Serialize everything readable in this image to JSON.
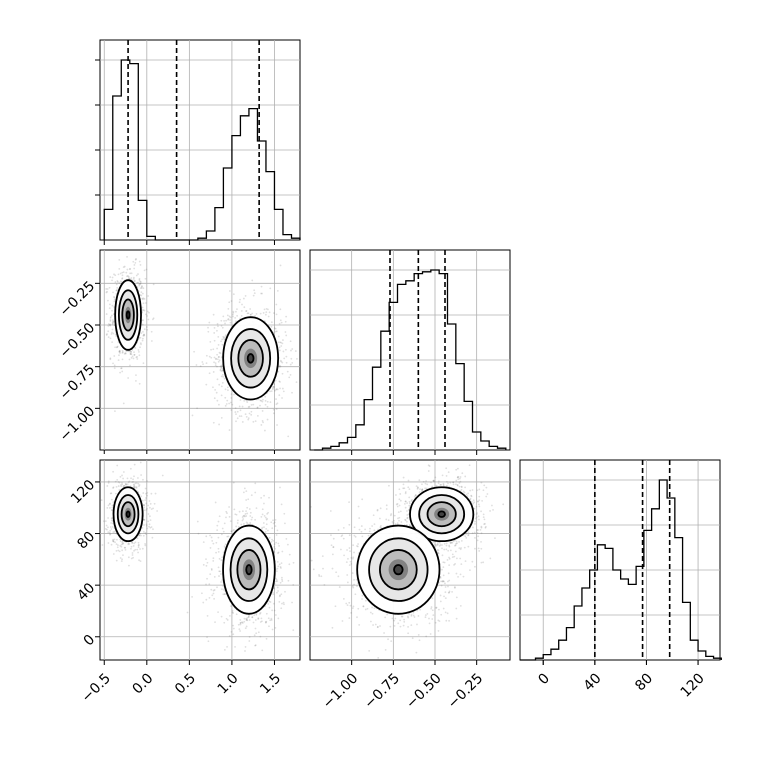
{
  "chart_data": {
    "type": "corner",
    "grid": true,
    "parameters": [
      {
        "range": [
          -0.55,
          1.8
        ],
        "ticks": [
          -0.5,
          0.0,
          0.5,
          1.0,
          1.5
        ],
        "tick_labels": [
          "−0.5",
          "0.0",
          "0.5",
          "1.0",
          "1.5"
        ],
        "quantiles": [
          -0.22,
          0.35,
          1.32
        ]
      },
      {
        "range": [
          -1.25,
          -0.05
        ],
        "ticks": [
          -1.0,
          -0.75,
          -0.5,
          -0.25
        ],
        "tick_labels": [
          "−1.00",
          "−0.75",
          "−0.50",
          "−0.25"
        ],
        "quantiles": [
          -0.77,
          -0.6,
          -0.44
        ]
      },
      {
        "range": [
          -18,
          137
        ],
        "ticks": [
          0,
          40,
          80,
          120
        ],
        "tick_labels": [
          "0",
          "40",
          "80",
          "120"
        ],
        "quantiles": [
          40,
          77,
          98
        ]
      }
    ],
    "histograms": [
      {
        "param": 0,
        "bins": [
          -0.45,
          -0.35,
          -0.25,
          -0.15,
          -0.05,
          0.05,
          0.15,
          0.25,
          0.35,
          0.45,
          0.55,
          0.65,
          0.75,
          0.85,
          0.95,
          1.05,
          1.15,
          1.25,
          1.35,
          1.45,
          1.55,
          1.65,
          1.75
        ],
        "counts": [
          0.17,
          0.8,
          1.0,
          0.98,
          0.22,
          0.02,
          0,
          0,
          0,
          0,
          0,
          0.01,
          0.05,
          0.18,
          0.4,
          0.58,
          0.69,
          0.73,
          0.55,
          0.38,
          0.17,
          0.03,
          0.01
        ]
      },
      {
        "param": 1,
        "bins": [
          -1.2,
          -1.15,
          -1.1,
          -1.05,
          -1.0,
          -0.95,
          -0.9,
          -0.85,
          -0.8,
          -0.75,
          -0.7,
          -0.65,
          -0.6,
          -0.55,
          -0.5,
          -0.45,
          -0.4,
          -0.35,
          -0.3,
          -0.25,
          -0.2,
          -0.15,
          -0.1
        ],
        "counts": [
          0,
          0.01,
          0.02,
          0.04,
          0.07,
          0.14,
          0.28,
          0.46,
          0.66,
          0.82,
          0.92,
          0.94,
          0.98,
          0.99,
          1.0,
          0.98,
          0.7,
          0.48,
          0.27,
          0.1,
          0.05,
          0.02,
          0.01
        ]
      },
      {
        "param": 2,
        "bins": [
          -15,
          -9,
          -3,
          3,
          9,
          15,
          21,
          27,
          33,
          39,
          45,
          51,
          57,
          63,
          69,
          75,
          81,
          87,
          93,
          99,
          105,
          111,
          117,
          123,
          129,
          135
        ],
        "counts": [
          0,
          0,
          0.01,
          0.03,
          0.06,
          0.11,
          0.18,
          0.3,
          0.4,
          0.5,
          0.64,
          0.62,
          0.5,
          0.45,
          0.42,
          0.52,
          0.72,
          0.84,
          1.0,
          0.9,
          0.68,
          0.32,
          0.11,
          0.05,
          0.02,
          0.01
        ]
      }
    ],
    "scatter_panels": [
      {
        "x_param": 0,
        "y_param": 1,
        "clusters": [
          {
            "center": [
              -0.22,
              -0.44
            ],
            "spread": [
              0.08,
              0.11
            ],
            "n": 850
          },
          {
            "center": [
              1.22,
              -0.7
            ],
            "spread": [
              0.17,
              0.13
            ],
            "n": 1000
          }
        ]
      },
      {
        "x_param": 0,
        "y_param": 2,
        "clusters": [
          {
            "center": [
              -0.22,
              95
            ],
            "spread": [
              0.09,
              11
            ],
            "n": 850
          },
          {
            "center": [
              1.2,
              52
            ],
            "spread": [
              0.16,
              18
            ],
            "n": 1000
          }
        ]
      },
      {
        "x_param": 1,
        "y_param": 2,
        "clusters": [
          {
            "center": [
              -0.46,
              95
            ],
            "spread": [
              0.1,
              11
            ],
            "n": 1000
          },
          {
            "center": [
              -0.72,
              52
            ],
            "spread": [
              0.13,
              18
            ],
            "n": 1000
          }
        ]
      }
    ]
  }
}
